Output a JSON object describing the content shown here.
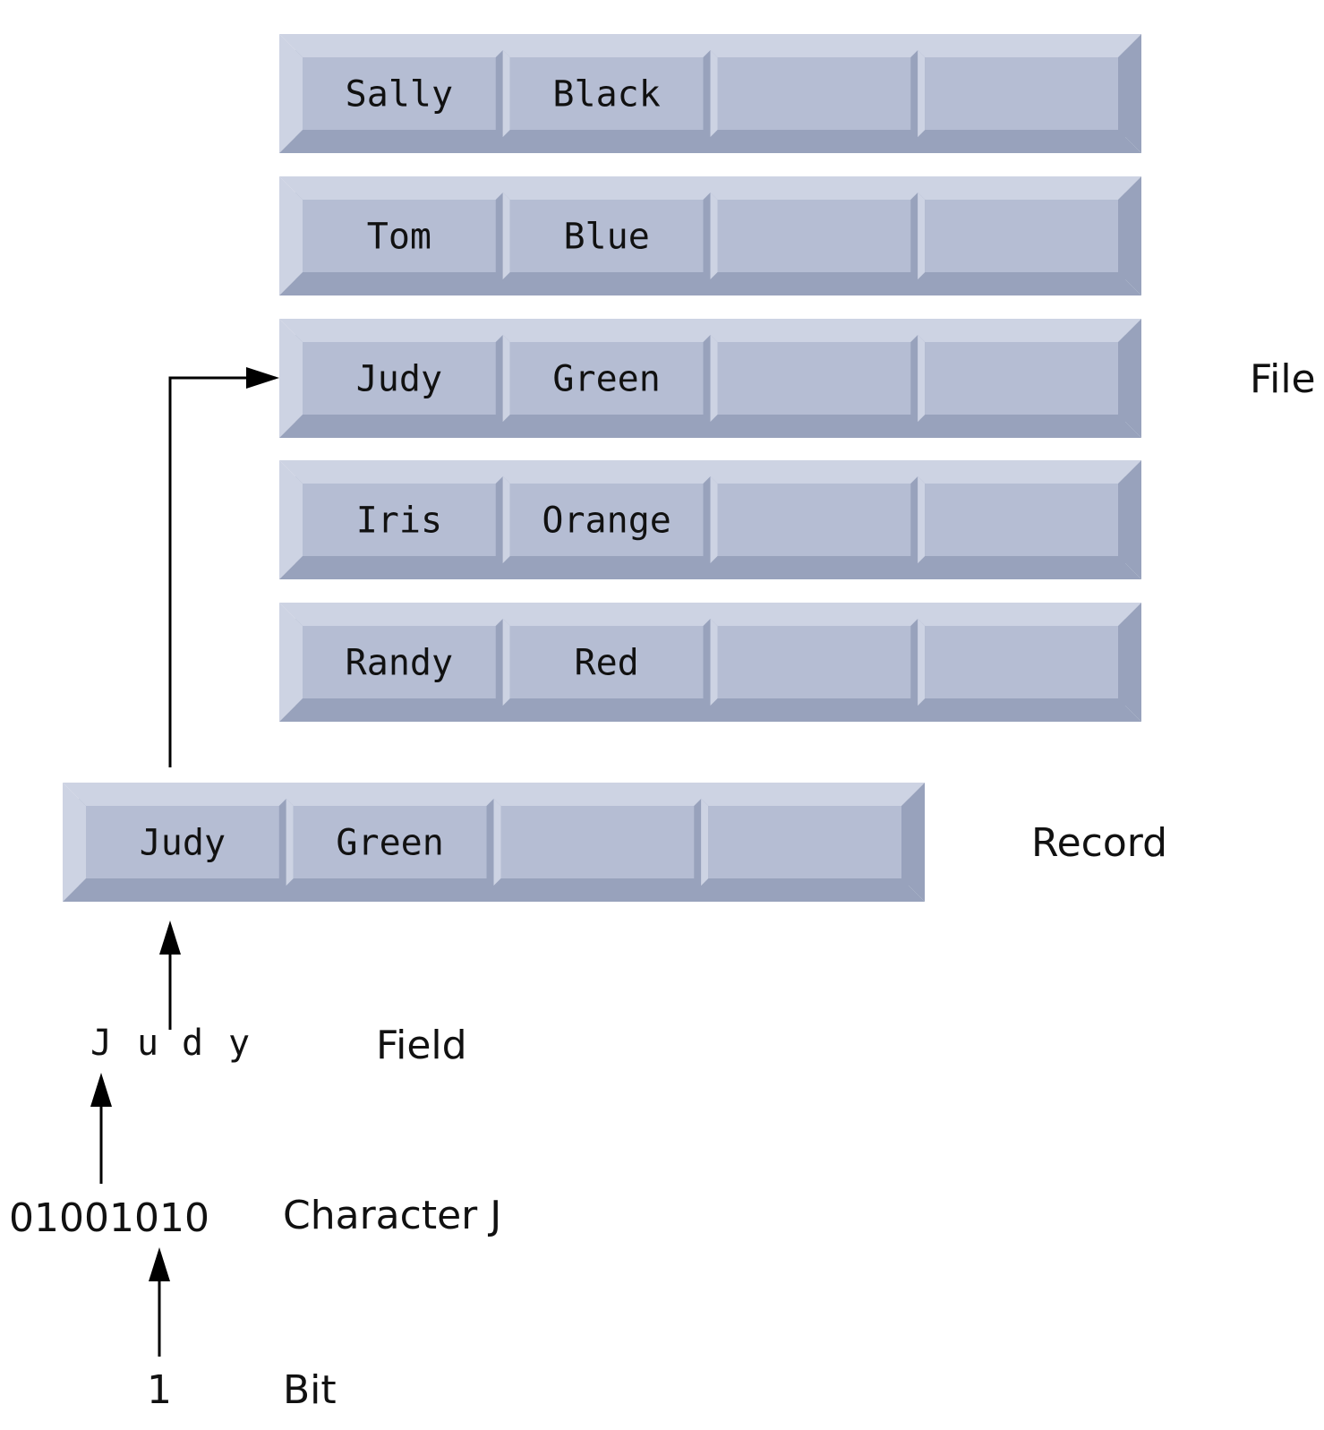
{
  "file": {
    "label": "File",
    "records": [
      {
        "first": "Sally",
        "last": "Black"
      },
      {
        "first": "Tom",
        "last": "Blue"
      },
      {
        "first": "Judy",
        "last": "Green"
      },
      {
        "first": "Iris",
        "last": "Orange"
      },
      {
        "first": "Randy",
        "last": "Red"
      }
    ]
  },
  "record": {
    "label": "Record",
    "first": "Judy",
    "last": "Green"
  },
  "field": {
    "label": "Field",
    "chars": [
      "J",
      "u",
      "d",
      "y"
    ]
  },
  "character": {
    "label": "Character J",
    "bits": "01001010"
  },
  "bit": {
    "label": "Bit",
    "value": "1"
  },
  "colors": {
    "cell_face": "#b5bdd3",
    "cell_light": "#cdd3e3",
    "cell_dark": "#98a2bc",
    "text": "#111111",
    "arrow": "#000000"
  }
}
